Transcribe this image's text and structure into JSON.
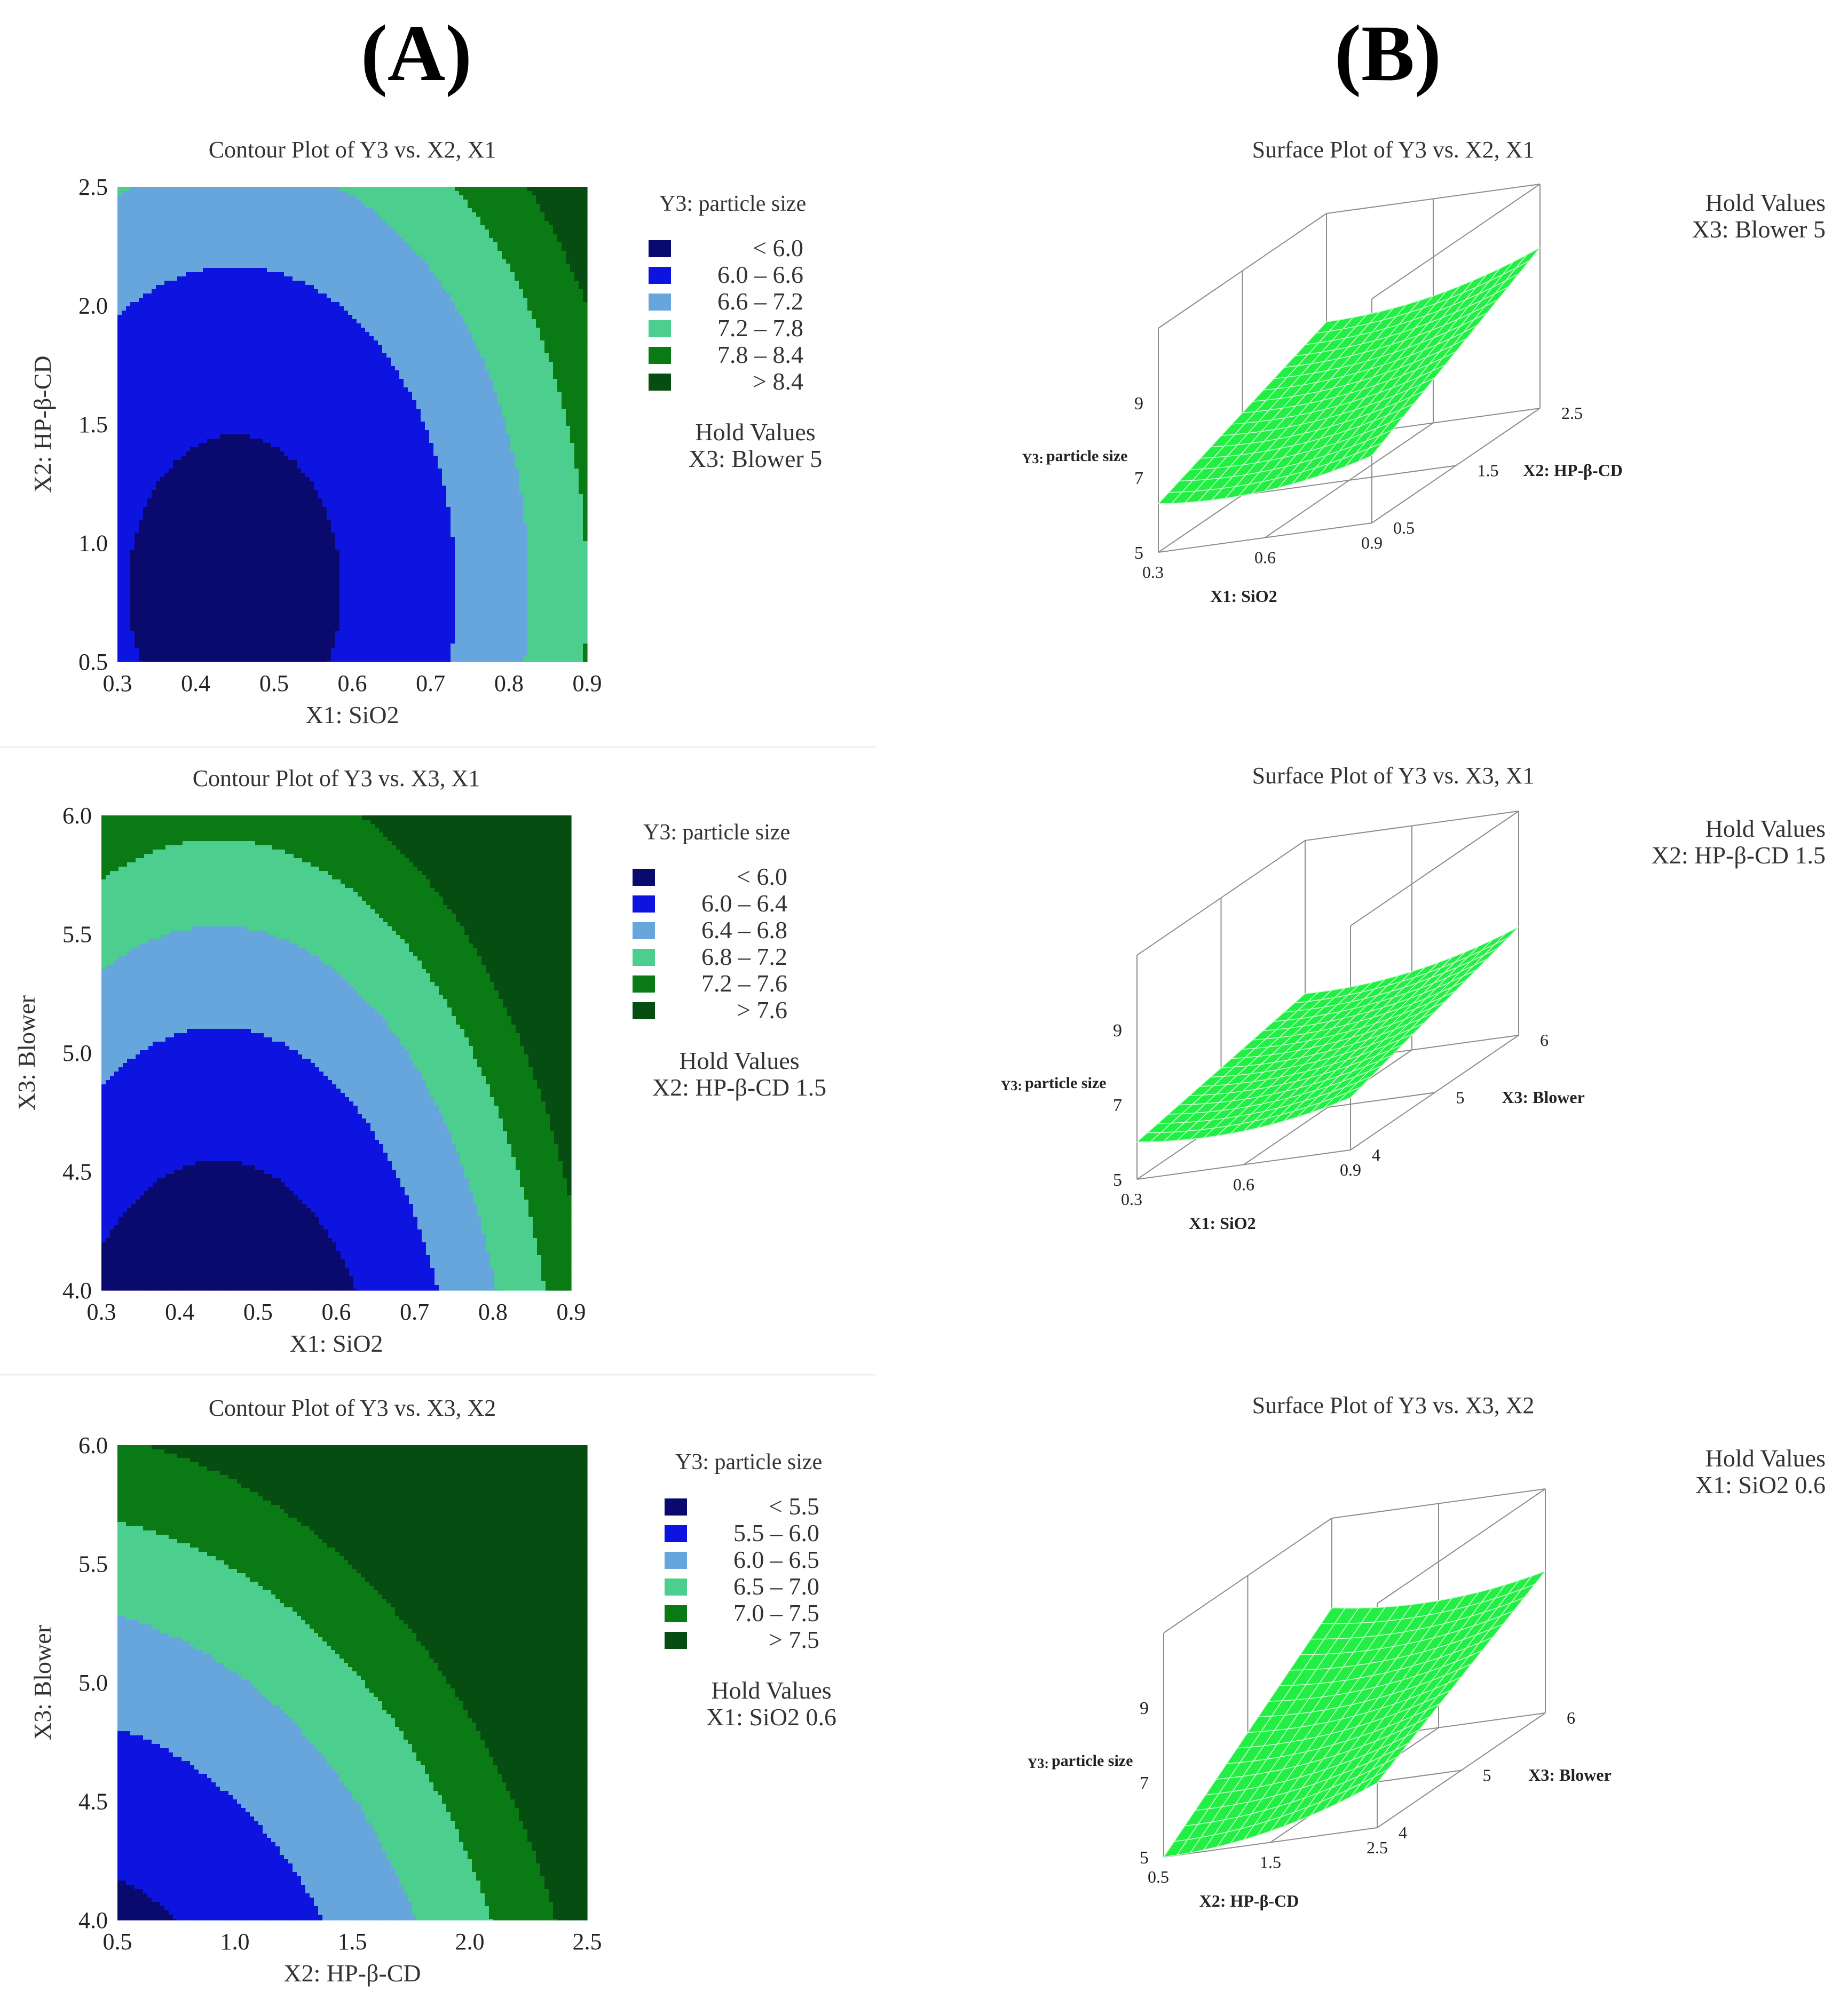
{
  "panel_labels": {
    "A": "(A)",
    "B": "(B)"
  },
  "colors": {
    "c1": "#0a0a6e",
    "c2": "#0d14e0",
    "c3": "#66a6dc",
    "c4": "#4ccf8e",
    "c5": "#0a7a14",
    "c6": "#064d12",
    "surface": "#22ee44",
    "surface_grid": "#c8ffd2",
    "box": "#8c8c8c"
  },
  "chart_data": [
    {
      "type": "contour",
      "title": "Contour Plot of Y3 vs. X2, X1",
      "xlabel": "X1: SiO2",
      "ylabel": "X2: HP-β-CD",
      "xlim": [
        0.3,
        0.9
      ],
      "ylim": [
        0.5,
        2.5
      ],
      "xticks": [
        "0.3",
        "0.4",
        "0.5",
        "0.6",
        "0.7",
        "0.8",
        "0.9"
      ],
      "yticks": [
        "0.5",
        "1.0",
        "1.5",
        "2.0",
        "2.5"
      ],
      "model": {
        "fixed": 5.82,
        "centerX": 0.45,
        "kx": 9.8,
        "centerY": 0.8,
        "ky": 0.42
      },
      "levels": [
        6.0,
        6.6,
        7.2,
        7.8,
        8.4
      ],
      "legend": {
        "title": "Y3: particle size",
        "items": [
          "< 6.0",
          "6.0 – 6.6",
          "6.6 – 7.2",
          "7.2 – 7.8",
          "7.8 – 8.4",
          "> 8.4"
        ],
        "hold_title": "Hold Values",
        "hold_value": "X3: Blower  5"
      }
    },
    {
      "type": "contour",
      "title": "Contour Plot of Y3 vs. X3, X1",
      "xlabel": "X1: SiO2",
      "ylabel": "X3: Blower",
      "xlim": [
        0.3,
        0.9
      ],
      "ylim": [
        4.0,
        6.0
      ],
      "xticks": [
        "0.3",
        "0.4",
        "0.5",
        "0.6",
        "0.7",
        "0.8",
        "0.9"
      ],
      "yticks": [
        "4.0",
        "4.5",
        "5.0",
        "5.5",
        "6.0"
      ],
      "model": {
        "fixed": 5.6,
        "centerX": 0.45,
        "kx": 8.4,
        "centerY": 3.2,
        "ky": 0.22
      },
      "levels": [
        6.0,
        6.4,
        6.8,
        7.2,
        7.6
      ],
      "legend": {
        "title": "Y3: particle size",
        "items": [
          "< 6.0",
          "6.0 – 6.4",
          "6.4 – 6.8",
          "6.8 – 7.2",
          "7.2 – 7.6",
          "> 7.6"
        ],
        "hold_title": "Hold Values",
        "hold_value": "X2: HP-β-CD  1.5"
      }
    },
    {
      "type": "contour",
      "title": "Contour Plot of Y3 vs. X3, X2",
      "xlabel": "X2: HP-β-CD",
      "ylabel": "X3: Blower",
      "xlim": [
        0.5,
        2.5
      ],
      "ylim": [
        4.0,
        6.0
      ],
      "xticks": [
        "0.5",
        "1.0",
        "1.5",
        "2.0",
        "2.5"
      ],
      "yticks": [
        "4.0",
        "4.5",
        "5.0",
        "5.5",
        "6.0"
      ],
      "model": {
        "fixed": 5.0,
        "centerX": 0.15,
        "kx": 0.44,
        "centerY": 2.8,
        "ky": 0.235
      },
      "levels": [
        5.5,
        6.0,
        6.5,
        7.0,
        7.5
      ],
      "legend": {
        "title": "Y3: particle size",
        "items": [
          "< 5.5",
          "5.5 – 6.0",
          "6.0 – 6.5",
          "6.5 – 7.0",
          "7.0 – 7.5",
          "> 7.5"
        ],
        "hold_title": "Hold Values",
        "hold_value": "X1: SiO2  0.6"
      }
    },
    {
      "type": "surface",
      "title": "Surface Plot of Y3 vs. X2, X1",
      "z_label_a": "Y3:",
      "z_label_b": "particle size",
      "x_label": "X1: SiO2",
      "y_label": "X2: HP-β-CD",
      "z_ticks": [
        "9",
        "7",
        "5"
      ],
      "x_ticks": [
        "0.3",
        "0.6",
        "0.9"
      ],
      "y_ticks": [
        "2.5",
        "1.5",
        "0.5"
      ],
      "z_corners": {
        "front_left": 6.3,
        "front_right": 6.8,
        "back_left": 8.1,
        "back_right": 9.3
      },
      "hold_title": "Hold Values",
      "hold_value": "X3: Blower  5"
    },
    {
      "type": "surface",
      "title": "Surface Plot of Y3 vs. X3, X1",
      "z_label_a": "Y3:",
      "z_label_b": "particle size",
      "x_label": "X1: SiO2",
      "y_label": "X3: Blower",
      "z_ticks": [
        "9",
        "7",
        "5"
      ],
      "x_ticks": [
        "0.3",
        "0.6",
        "0.9"
      ],
      "y_ticks": [
        "6",
        "5",
        "4"
      ],
      "z_corners": {
        "front_left": 6.0,
        "front_right": 6.4,
        "back_left": 6.9,
        "back_right": 7.9
      },
      "hold_title": "Hold Values",
      "hold_value": "X2: HP-β-CD  1.5"
    },
    {
      "type": "surface",
      "title": "Surface Plot of Y3 vs. X3, X2",
      "z_label_a": "Y3:",
      "z_label_b": "particle size",
      "x_label": "X2: HP-β-CD",
      "y_label": "X3: Blower",
      "z_ticks": [
        "9",
        "7",
        "5"
      ],
      "x_ticks": [
        "0.5",
        "1.5",
        "2.5"
      ],
      "y_ticks": [
        "6",
        "5",
        "4"
      ],
      "z_corners": {
        "front_left": 5.0,
        "front_right": 6.2,
        "back_left": 8.6,
        "back_right": 8.8
      },
      "hold_title": "Hold Values",
      "hold_value": "X1: SiO2  0.6"
    }
  ]
}
